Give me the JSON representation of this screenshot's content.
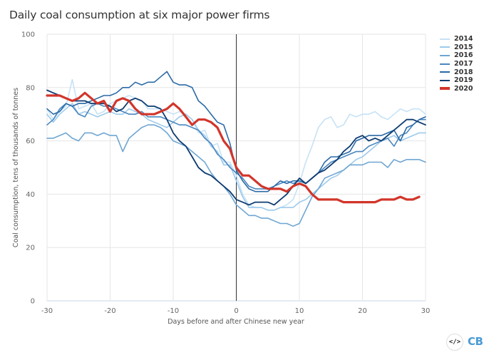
{
  "chart_data": {
    "type": "line",
    "title": "Daily coal consumption at six major power firms",
    "xlabel": "Days before and after Chinese new year",
    "ylabel": "Coal consumption, tens of thousands of tonnes",
    "xlim": [
      -30,
      30
    ],
    "ylim": [
      0,
      100
    ],
    "xticks": [
      -30,
      -20,
      -10,
      0,
      10,
      20,
      30
    ],
    "yticks": [
      0,
      20,
      40,
      60,
      80,
      100
    ],
    "grid": true,
    "legend_position": "right",
    "reference_line_x": 0,
    "x_start": -30,
    "series": [
      {
        "name": "2014",
        "color": "#c6e2f5",
        "width": 1.6,
        "values": [
          72,
          68,
          71,
          73,
          83,
          72,
          73,
          74,
          70,
          71,
          74,
          75,
          76,
          77,
          76,
          75,
          72,
          72,
          72,
          71,
          70,
          71,
          70,
          68,
          63,
          64,
          58,
          59,
          52,
          52,
          47,
          40,
          36,
          35,
          35,
          34,
          34,
          35,
          36,
          38,
          44,
          52,
          58,
          65,
          68,
          69,
          65,
          66,
          70,
          69,
          70,
          70,
          71,
          69,
          68,
          70,
          72,
          71,
          72,
          72,
          70
        ]
      },
      {
        "name": "2015",
        "color": "#9dcaeb",
        "width": 1.6,
        "values": [
          70,
          67,
          70,
          72,
          74,
          70,
          71,
          70,
          69,
          70,
          71,
          70,
          70,
          72,
          71,
          70,
          68,
          67,
          66,
          65,
          67,
          69,
          70,
          68,
          64,
          62,
          58,
          56,
          51,
          51,
          45,
          39,
          35,
          35,
          35,
          34,
          34,
          35,
          35,
          35,
          37,
          38,
          40,
          42,
          44,
          46,
          47,
          49,
          51,
          53,
          54,
          56,
          58,
          60,
          61,
          62,
          60,
          61,
          62,
          63,
          63
        ]
      },
      {
        "name": "2016",
        "color": "#6fa6d3",
        "width": 1.6,
        "values": [
          61,
          61,
          62,
          63,
          61,
          60,
          63,
          63,
          62,
          63,
          62,
          62,
          56,
          61,
          63,
          65,
          66,
          66,
          65,
          63,
          60,
          59,
          58,
          56,
          54,
          52,
          48,
          45,
          43,
          40,
          36,
          34,
          32,
          32,
          31,
          31,
          30,
          29,
          29,
          28,
          29,
          34,
          39,
          42,
          46,
          47,
          48,
          49,
          51,
          51,
          51,
          52,
          52,
          52,
          50,
          53,
          52,
          53,
          53,
          53,
          52
        ]
      },
      {
        "name": "2017",
        "color": "#4a87bf",
        "width": 1.6,
        "values": [
          66,
          68,
          72,
          74,
          73,
          70,
          69,
          73,
          74,
          73,
          73,
          72,
          71,
          70,
          70,
          71,
          69,
          69,
          69,
          68,
          67,
          66,
          66,
          65,
          64,
          61,
          59,
          55,
          53,
          50,
          48,
          46,
          43,
          42,
          42,
          42,
          43,
          44,
          45,
          44,
          45,
          44,
          46,
          48,
          50,
          52,
          53,
          54,
          55,
          56,
          56,
          58,
          59,
          60,
          61,
          58,
          62,
          63,
          66,
          68,
          68
        ]
      },
      {
        "name": "2018",
        "color": "#2b6aa6",
        "width": 1.6,
        "values": [
          72,
          70,
          71,
          74,
          73,
          74,
          74,
          75,
          76,
          77,
          77,
          78,
          80,
          80,
          82,
          81,
          82,
          82,
          84,
          86,
          82,
          81,
          81,
          80,
          75,
          73,
          70,
          67,
          66,
          59,
          49,
          45,
          42,
          41,
          41,
          41,
          43,
          45,
          44,
          45,
          45,
          44,
          46,
          48,
          52,
          54,
          54,
          55,
          56,
          60,
          61,
          62,
          62,
          62,
          63,
          64,
          60,
          65,
          66,
          68,
          69
        ]
      },
      {
        "name": "2019",
        "color": "#0d3b70",
        "width": 1.8,
        "values": [
          79,
          78,
          77,
          76,
          75,
          75,
          75,
          74,
          74,
          74,
          73,
          71,
          72,
          75,
          76,
          75,
          73,
          73,
          72,
          68,
          63,
          60,
          58,
          54,
          50,
          48,
          47,
          45,
          43,
          41,
          38,
          37,
          36,
          37,
          37,
          37,
          36,
          38,
          40,
          43,
          46,
          44,
          46,
          48,
          49,
          51,
          53,
          56,
          58,
          61,
          62,
          60,
          61,
          60,
          62,
          64,
          66,
          68,
          68,
          67,
          66
        ]
      },
      {
        "name": "2020",
        "color": "#d2352a",
        "width": 3.2,
        "values": [
          77,
          77,
          77,
          76,
          75,
          76,
          78,
          76,
          74,
          75,
          71,
          75,
          76,
          75,
          72,
          70,
          70,
          70,
          71,
          72,
          74,
          72,
          69,
          66,
          68,
          68,
          67,
          65,
          60,
          57,
          50,
          47,
          47,
          45,
          43,
          42,
          42,
          42,
          41,
          43,
          44,
          43,
          40,
          38,
          38,
          38,
          38,
          37,
          37,
          37,
          37,
          37,
          37,
          38,
          38,
          38,
          39,
          38,
          38,
          39
        ]
      }
    ]
  },
  "legend": {
    "items": [
      {
        "label": "2014",
        "color": "#c6e2f5"
      },
      {
        "label": "2015",
        "color": "#9dcaeb"
      },
      {
        "label": "2016",
        "color": "#6fa6d3"
      },
      {
        "label": "2017",
        "color": "#4a87bf"
      },
      {
        "label": "2018",
        "color": "#2b6aa6"
      },
      {
        "label": "2019",
        "color": "#0d3b70"
      },
      {
        "label": "2020",
        "color": "#d2352a"
      }
    ]
  },
  "footer": {
    "embed_icon": "code-embed-icon",
    "embed_glyph": "</>",
    "logo_text": "CB"
  }
}
